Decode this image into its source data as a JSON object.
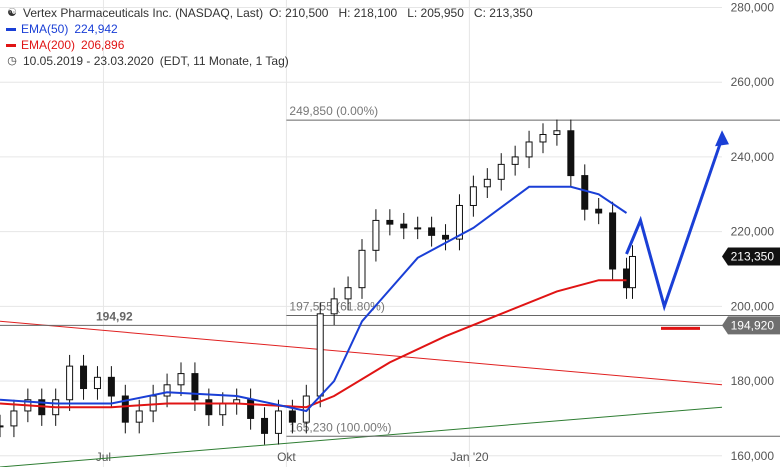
{
  "legend": {
    "title": "Vertex Pharmaceuticals Inc. (NASDAQ, Last)",
    "ohlc": "O: 210,500   H: 218,100   L: 205,950   C: 213,350",
    "ema50_label": "EMA(50)",
    "ema50_value": "224,942",
    "ema200_label": "EMA(200)",
    "ema200_value": "206,896",
    "range": "10.05.2019 - 23.03.2020",
    "range_detail": "(EDT, 11 Monate, 1 Tag)"
  },
  "icons": {
    "chart_type": "candlestick-icon",
    "clock": "clock-icon"
  },
  "colors": {
    "ema50": "#1a3fd6",
    "ema200": "#e01414",
    "projection": "#1a3fd6",
    "support_mark": "#e01414",
    "upper_trendline": "#e02020",
    "lower_trendline": "#2e7d32",
    "candle": "#111111",
    "grid": "#e6e6e6",
    "current_price_bg": "#111111",
    "support_price_bg": "#6f6f6f"
  },
  "annotations": {
    "fib_top": "249,850 (0.00%)",
    "fib_mid": "197,555 (61.80%)",
    "fib_bottom": "165,230 (100.00%)",
    "support_label": "194,92",
    "current_price": "213,350",
    "support_price": "194,920"
  },
  "chart_data": {
    "type": "candlestick",
    "title": "Vertex Pharmaceuticals Inc. (NASDAQ, Last)",
    "ylim": [
      157,
      282
    ],
    "y_ticks": [
      "160,000",
      "180,000",
      "200,000",
      "220,000",
      "240,000",
      "260,000",
      "280,000"
    ],
    "y_tick_values": [
      160,
      180,
      200,
      220,
      240,
      260,
      280
    ],
    "x_ticks": [
      "Jul",
      "Okt",
      "Jan '20"
    ],
    "x_tick_dates": [
      "2019-07-01",
      "2019-10-01",
      "2020-01-01"
    ],
    "x_start": "2019-05-10",
    "x_end": "2020-03-23",
    "projection_end": "2020-05-07",
    "series": [
      {
        "name": "Price (close, weekly)",
        "dates": [
          "2019-05-10",
          "2019-05-17",
          "2019-05-24",
          "2019-05-31",
          "2019-06-07",
          "2019-06-14",
          "2019-06-21",
          "2019-06-28",
          "2019-07-05",
          "2019-07-12",
          "2019-07-19",
          "2019-07-26",
          "2019-08-02",
          "2019-08-09",
          "2019-08-16",
          "2019-08-23",
          "2019-08-30",
          "2019-09-06",
          "2019-09-13",
          "2019-09-20",
          "2019-09-27",
          "2019-10-04",
          "2019-10-11",
          "2019-10-18",
          "2019-10-25",
          "2019-11-01",
          "2019-11-08",
          "2019-11-15",
          "2019-11-22",
          "2019-11-29",
          "2019-12-06",
          "2019-12-13",
          "2019-12-20",
          "2019-12-27",
          "2020-01-03",
          "2020-01-10",
          "2020-01-17",
          "2020-01-24",
          "2020-01-31",
          "2020-02-07",
          "2020-02-14",
          "2020-02-21",
          "2020-02-28",
          "2020-03-06",
          "2020-03-13",
          "2020-03-20",
          "2020-03-23"
        ],
        "values": [
          168,
          172,
          175,
          171,
          175,
          184,
          178,
          181,
          176,
          169,
          172,
          176,
          179,
          182,
          175,
          171,
          174,
          175,
          170,
          166,
          172,
          169,
          176,
          198,
          202,
          205,
          215,
          223,
          222,
          221,
          221,
          219,
          218,
          227,
          232,
          234,
          238,
          240,
          244,
          246,
          247,
          235,
          226,
          225,
          210,
          205,
          213.35
        ]
      },
      {
        "name": "EMA(50)",
        "dates": [
          "2019-05-10",
          "2019-06-07",
          "2019-07-05",
          "2019-08-02",
          "2019-09-06",
          "2019-10-11",
          "2019-10-25",
          "2019-11-08",
          "2019-12-06",
          "2020-01-03",
          "2020-01-31",
          "2020-02-21",
          "2020-03-06",
          "2020-03-20"
        ],
        "values": [
          175,
          174,
          174,
          177,
          176,
          172,
          180,
          196,
          213,
          221,
          232,
          232,
          230,
          225
        ]
      },
      {
        "name": "EMA(200)",
        "dates": [
          "2019-05-10",
          "2019-06-07",
          "2019-07-05",
          "2019-08-02",
          "2019-09-06",
          "2019-10-11",
          "2019-10-25",
          "2019-11-22",
          "2019-12-20",
          "2020-01-17",
          "2020-02-14",
          "2020-03-06",
          "2020-03-20"
        ],
        "values": [
          174,
          173,
          173,
          174,
          174,
          173,
          176,
          185,
          192,
          198,
          204,
          207,
          207
        ]
      },
      {
        "name": "Projection",
        "dates": [
          "2020-03-20",
          "2020-03-27",
          "2020-04-08",
          "2020-05-07"
        ],
        "values": [
          214,
          223,
          200,
          245
        ]
      },
      {
        "name": "Upper trendline",
        "dates": [
          "2019-05-10",
          "2020-05-07"
        ],
        "values": [
          196,
          179
        ]
      },
      {
        "name": "Lower trendline",
        "dates": [
          "2019-05-10",
          "2020-05-07"
        ],
        "values": [
          157,
          173
        ]
      }
    ],
    "levels": [
      {
        "label": "249,850 (0.00%)",
        "value": 249.85
      },
      {
        "label": "197,555 (61.80%)",
        "value": 197.555
      },
      {
        "label": "165,230 (100.00%)",
        "value": 165.23
      },
      {
        "label": "194,92",
        "value": 194.92
      }
    ],
    "grid": true,
    "legend_position": "top-left"
  }
}
